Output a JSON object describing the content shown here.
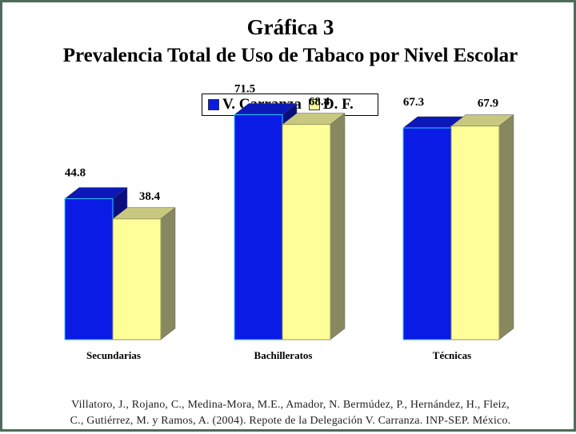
{
  "title_line1": "Gráfica 3",
  "title_line2": "Prevalencia Total de Uso de Tabaco por Nivel Escolar",
  "legend": [
    {
      "label": "V. Carranza",
      "color": "#0a1be6"
    },
    {
      "label": "D. F.",
      "color": "#ffff99"
    }
  ],
  "source_line1": "Villatoro, J., Rojano, C., Medina-Mora, M.E., Amador, N. Bermúdez, P., Hernández, H., Fleiz,",
  "source_line2": "C., Gutiérrez, M. y Ramos, A. (2004). Repote de la Delegación V. Carranza. INP-SEP. México.",
  "chart_data": {
    "type": "bar",
    "style": "3d-clustered",
    "categories": [
      "Secundarias",
      "Bachilleratos",
      "Técnicas"
    ],
    "series": [
      {
        "name": "V. Carranza",
        "values": [
          44.8,
          71.5,
          67.3
        ],
        "color": "#0a1be6"
      },
      {
        "name": "D. F.",
        "values": [
          38.4,
          68.4,
          67.9
        ],
        "color": "#ffff99"
      }
    ],
    "ylim": [
      0,
      80
    ],
    "grid": false,
    "legend_position": "top"
  }
}
